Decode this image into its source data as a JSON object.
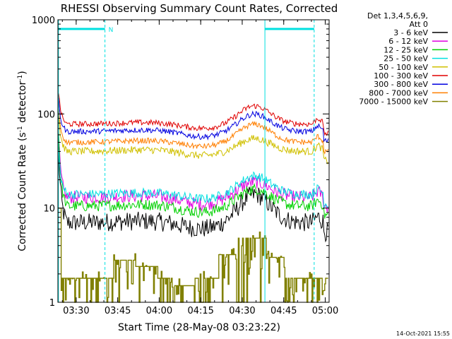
{
  "chart_data": {
    "type": "line",
    "title": "RHESSI Observing Summary Count Rates, Corrected",
    "xlabel": "Start Time (28-May-08 03:23:22)",
    "ylabel_main": "Corrected Count Rate (s",
    "ylabel_sup1": "-1",
    "ylabel_mid": " detector",
    "ylabel_sup2": "-1",
    "ylabel_end": ")",
    "yscale": "log",
    "ylim": [
      1,
      1000
    ],
    "xlim_minutes": [
      3.4,
      25.3,
      4.2,
      6.0
    ],
    "x_range_minutes": [
      0,
      98
    ],
    "x_ticks": [
      {
        "label": "03:30",
        "minute": 6.6
      },
      {
        "label": "03:45",
        "minute": 21.6
      },
      {
        "label": "04:00",
        "minute": 36.6
      },
      {
        "label": "04:15",
        "minute": 51.6
      },
      {
        "label": "04:30",
        "minute": 66.6
      },
      {
        "label": "04:45",
        "minute": 81.6
      },
      {
        "label": "05:00",
        "minute": 96.6
      }
    ],
    "y_ticks": [
      {
        "label": "1",
        "value": 1
      },
      {
        "label": "10",
        "value": 10
      },
      {
        "label": "100",
        "value": 100
      },
      {
        "label": "1000",
        "value": 1000
      }
    ],
    "legend_header": [
      "Det 1,3,4,5,6,9,",
      "Att 0"
    ],
    "night_marker": "N",
    "timestamp": "14-Oct-2021 15:55",
    "series": [
      {
        "name": "3 - 6 keV",
        "color": "#000000",
        "base": 7.0,
        "peak": 14,
        "dip": 6.0,
        "noise": 0.1,
        "start": 75
      },
      {
        "name": "6 - 12 keV",
        "color": "#e000e0",
        "base": 13.0,
        "peak": 19,
        "dip": 11.0,
        "noise": 0.07,
        "start": 92
      },
      {
        "name": "12 - 25 keV",
        "color": "#00d000",
        "base": 10.5,
        "peak": 16,
        "dip": 9.0,
        "noise": 0.06,
        "start": 115
      },
      {
        "name": "25 - 50 keV",
        "color": "#00e0e0",
        "base": 14.0,
        "peak": 22,
        "dip": 12.5,
        "noise": 0.05,
        "start": 60
      },
      {
        "name": "50 - 100 keV",
        "color": "#d0c000",
        "base": 40.0,
        "peak": 55,
        "dip": 36.0,
        "noise": 0.04,
        "start": 130
      },
      {
        "name": "100 - 300 keV",
        "color": "#e00000",
        "base": 78.0,
        "peak": 122,
        "dip": 70.0,
        "noise": 0.03,
        "start": 220
      },
      {
        "name": "300 - 800 keV",
        "color": "#0000e0",
        "base": 65.0,
        "peak": 100,
        "dip": 57.0,
        "noise": 0.03,
        "start": 180
      },
      {
        "name": "800 - 7000 keV",
        "color": "#ff7f00",
        "base": 50.0,
        "peak": 78,
        "dip": 45.0,
        "noise": 0.03,
        "start": 150
      },
      {
        "name": "7000 - 15000 keV",
        "color": "#808000",
        "base": 1.8,
        "peak": 5,
        "dip": 1.3,
        "noise": 0.35,
        "start": 1
      }
    ]
  }
}
